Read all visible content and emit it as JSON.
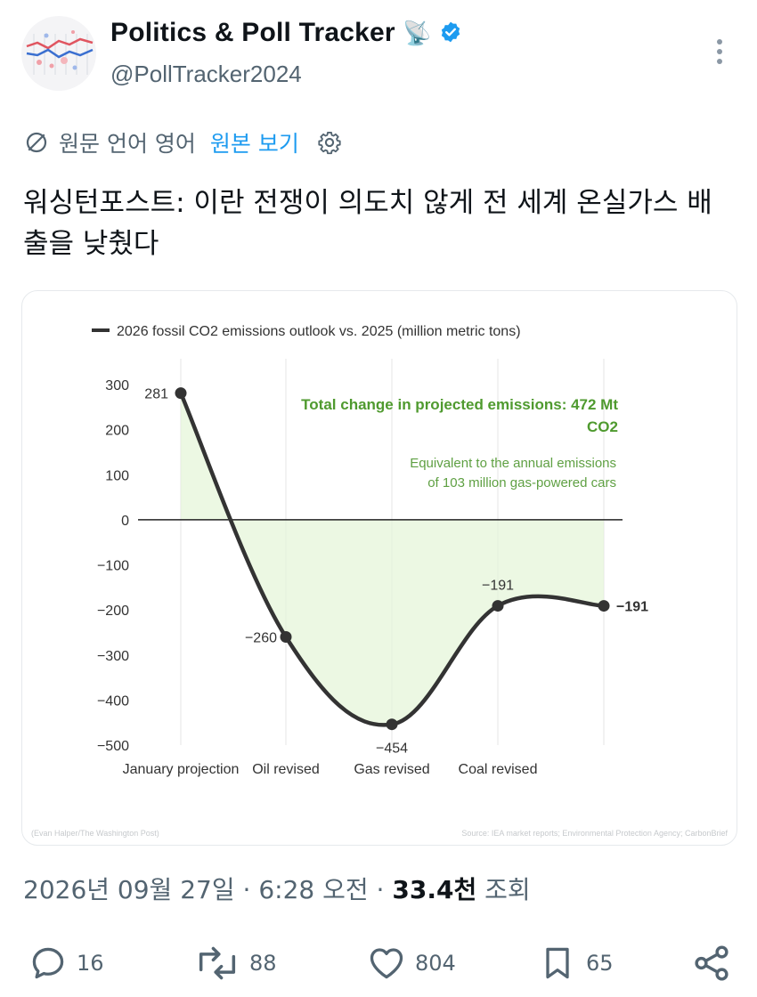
{
  "header": {
    "display_name": "Politics & Poll Tracker",
    "handle": "@PollTracker2024",
    "name_emoji": "📡"
  },
  "translate": {
    "original_language": "원문 언어 영어",
    "view_original": "원본 보기"
  },
  "tweet": {
    "text": "워싱턴포스트: 이란 전쟁이 의도치 않게 전 세계 온실가스 배출을 낮췄다"
  },
  "chart_data": {
    "type": "line",
    "legend": "2026 fossil CO2 emissions outlook vs. 2025 (million metric tons)",
    "categories": [
      "January projection",
      "Oil revised",
      "Gas revised",
      "Coal revised",
      ""
    ],
    "values": [
      281,
      -260,
      -454,
      -191,
      -191
    ],
    "point_labels": [
      "281",
      "−260",
      "−454",
      "−191",
      "−191"
    ],
    "ylim": [
      -500,
      300
    ],
    "yticks": [
      "300",
      "200",
      "100",
      "0",
      "−100",
      "−200",
      "−300",
      "−400",
      "−500"
    ],
    "ytick_values": [
      300,
      200,
      100,
      0,
      -100,
      -200,
      -300,
      -400,
      -500
    ],
    "annotation_title": "Total change in projected emissions: 472 Mt CO2",
    "annotation_title_line1": "Total change in projected emissions: 472 Mt",
    "annotation_title_line2": "CO2",
    "annotation_body_line1": "Equivalent to the annual emissions",
    "annotation_body_line2": "of 103 million gas-powered cars",
    "credit": "(Evan Halper/The Washington Post)",
    "source": "Source: IEA market reports; Environmental Protection Agency; CarbonBrief",
    "colors": {
      "line": "#333333",
      "fill": "#e5f5da",
      "annotation_title": "#4f9a2f",
      "annotation_body": "#5fa043"
    }
  },
  "meta": {
    "date": "2026년 09월 27일",
    "time": "6:28 오전",
    "views_count": "33.4천",
    "views_label": "조회"
  },
  "actions": {
    "replies": "16",
    "retweets": "88",
    "likes": "804",
    "bookmarks": "65"
  },
  "colors": {
    "verified": "#1d9bf0",
    "link": "#1d9bf0",
    "muted": "#536471"
  }
}
